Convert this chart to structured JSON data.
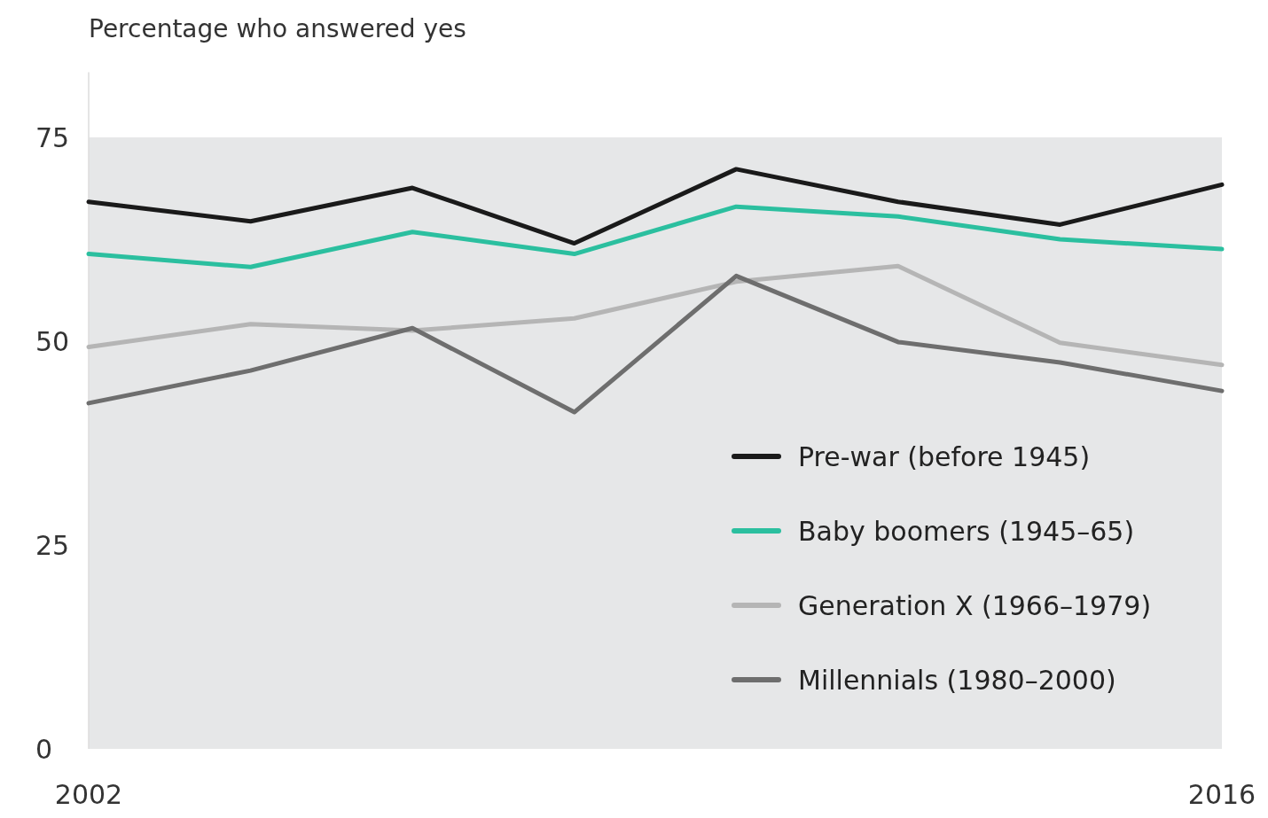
{
  "chart_data": {
    "type": "line",
    "ylabel": "Percentage who answered yes",
    "x": [
      2002,
      2004,
      2006,
      2008,
      2010,
      2012,
      2014,
      2016
    ],
    "xlim": [
      2002,
      2016
    ],
    "xticks": [
      2002,
      2016
    ],
    "ylim": [
      0,
      83
    ],
    "yticks": [
      0,
      25,
      50,
      75
    ],
    "bands": [
      {
        "axis": "y",
        "from": 0,
        "to": 75,
        "color": "#e6e7e8"
      }
    ],
    "legend": "bottom right",
    "grid": false,
    "series": [
      {
        "name": "Pre-war (before 1945)",
        "color": "#1a1a1a",
        "values": [
          67.1,
          64.7,
          68.8,
          62.0,
          71.1,
          67.1,
          64.3,
          69.2
        ]
      },
      {
        "name": "Baby boomers (1945–65)",
        "color": "#2bbf9f",
        "values": [
          60.7,
          59.1,
          63.4,
          60.7,
          66.5,
          65.3,
          62.5,
          61.3
        ]
      },
      {
        "name": "Generation X (1966–1979)",
        "color": "#b5b5b5",
        "values": [
          49.3,
          52.1,
          51.3,
          52.8,
          57.3,
          59.2,
          49.8,
          47.1
        ]
      },
      {
        "name": "Millennials (1980–2000)",
        "color": "#6e6e6e",
        "values": [
          42.4,
          46.4,
          51.6,
          41.3,
          58.0,
          49.9,
          47.4,
          43.9
        ]
      }
    ]
  }
}
